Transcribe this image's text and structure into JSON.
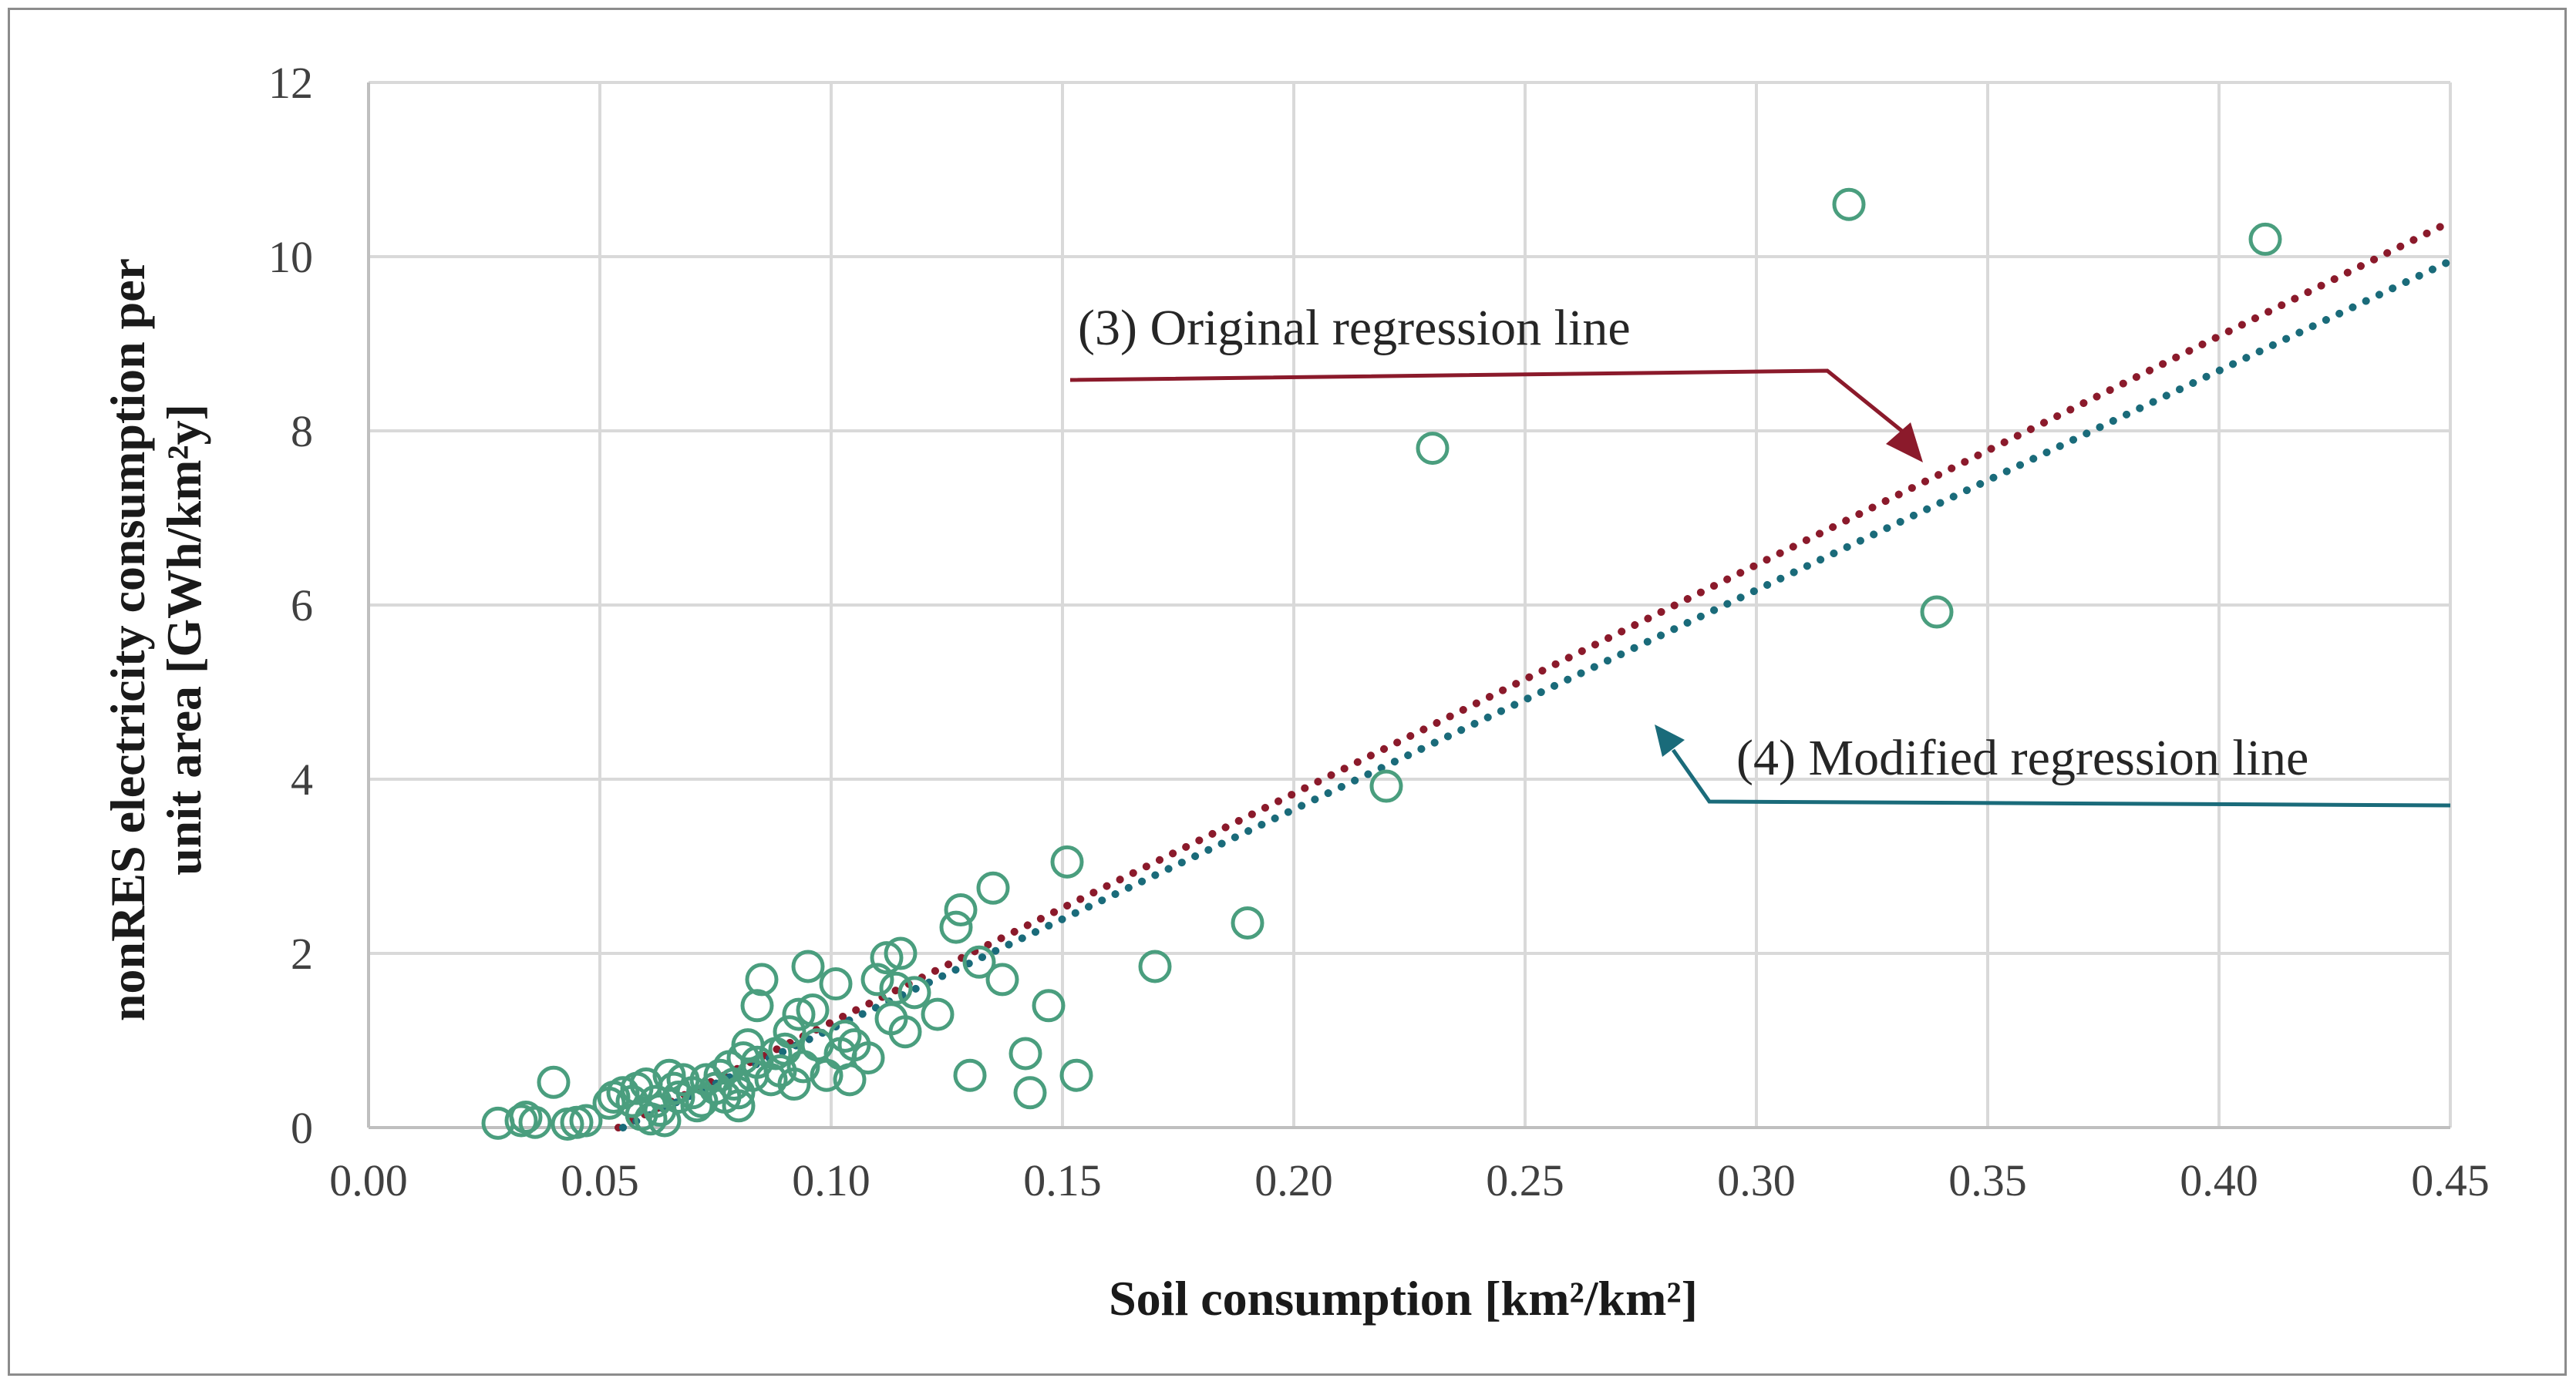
{
  "chart_data": {
    "type": "scatter",
    "title": "",
    "xlabel": "Soil consumption [km²/km²]",
    "ylabel_lines": [
      "nonRES electricity consumption per",
      "unit area [GWh/km²y]"
    ],
    "xlim": [
      0,
      0.45
    ],
    "ylim": [
      0,
      12
    ],
    "x_ticks": [
      "0.00",
      "0.05",
      "0.10",
      "0.15",
      "0.20",
      "0.25",
      "0.30",
      "0.35",
      "0.40",
      "0.45"
    ],
    "y_ticks": [
      "0",
      "2",
      "4",
      "6",
      "8",
      "10",
      "12"
    ],
    "grid": true,
    "series": [
      {
        "name": "observations",
        "color": "#4a9e7e",
        "marker": "open-circle",
        "points": [
          [
            0.028,
            0.05
          ],
          [
            0.033,
            0.08
          ],
          [
            0.034,
            0.12
          ],
          [
            0.036,
            0.06
          ],
          [
            0.04,
            0.52
          ],
          [
            0.043,
            0.04
          ],
          [
            0.045,
            0.06
          ],
          [
            0.047,
            0.08
          ],
          [
            0.052,
            0.28
          ],
          [
            0.053,
            0.35
          ],
          [
            0.055,
            0.4
          ],
          [
            0.057,
            0.3
          ],
          [
            0.058,
            0.45
          ],
          [
            0.059,
            0.15
          ],
          [
            0.06,
            0.5
          ],
          [
            0.061,
            0.1
          ],
          [
            0.062,
            0.3
          ],
          [
            0.063,
            0.2
          ],
          [
            0.064,
            0.08
          ],
          [
            0.065,
            0.6
          ],
          [
            0.066,
            0.45
          ],
          [
            0.067,
            0.35
          ],
          [
            0.068,
            0.55
          ],
          [
            0.07,
            0.4
          ],
          [
            0.071,
            0.25
          ],
          [
            0.072,
            0.3
          ],
          [
            0.073,
            0.55
          ],
          [
            0.075,
            0.45
          ],
          [
            0.076,
            0.6
          ],
          [
            0.077,
            0.35
          ],
          [
            0.078,
            0.7
          ],
          [
            0.079,
            0.5
          ],
          [
            0.08,
            0.25
          ],
          [
            0.08,
            0.4
          ],
          [
            0.081,
            0.8
          ],
          [
            0.082,
            0.95
          ],
          [
            0.083,
            0.6
          ],
          [
            0.084,
            0.75
          ],
          [
            0.084,
            1.4
          ],
          [
            0.085,
            1.7
          ],
          [
            0.087,
            0.55
          ],
          [
            0.088,
            0.85
          ],
          [
            0.089,
            0.65
          ],
          [
            0.09,
            0.9
          ],
          [
            0.091,
            1.1
          ],
          [
            0.092,
            0.5
          ],
          [
            0.093,
            1.3
          ],
          [
            0.094,
            0.7
          ],
          [
            0.095,
            1.85
          ],
          [
            0.096,
            1.35
          ],
          [
            0.097,
            0.95
          ],
          [
            0.099,
            0.6
          ],
          [
            0.101,
            1.65
          ],
          [
            0.102,
            0.85
          ],
          [
            0.103,
            1.05
          ],
          [
            0.104,
            0.55
          ],
          [
            0.105,
            0.95
          ],
          [
            0.108,
            0.8
          ],
          [
            0.11,
            1.7
          ],
          [
            0.112,
            1.95
          ],
          [
            0.113,
            1.25
          ],
          [
            0.114,
            1.6
          ],
          [
            0.115,
            2.0
          ],
          [
            0.116,
            1.1
          ],
          [
            0.118,
            1.55
          ],
          [
            0.123,
            1.3
          ],
          [
            0.127,
            2.3
          ],
          [
            0.128,
            2.5
          ],
          [
            0.13,
            0.6
          ],
          [
            0.132,
            1.9
          ],
          [
            0.135,
            2.75
          ],
          [
            0.137,
            1.7
          ],
          [
            0.142,
            0.85
          ],
          [
            0.143,
            0.4
          ],
          [
            0.147,
            1.4
          ],
          [
            0.151,
            3.05
          ],
          [
            0.153,
            0.6
          ],
          [
            0.17,
            1.85
          ],
          [
            0.19,
            2.35
          ],
          [
            0.22,
            3.92
          ],
          [
            0.23,
            7.8
          ],
          [
            0.32,
            10.6
          ],
          [
            0.339,
            5.92
          ],
          [
            0.41,
            10.2
          ]
        ]
      }
    ],
    "regression_lines": [
      {
        "name": "(3) Original regression line",
        "color": "#8b1a2b",
        "x_start": 0.054,
        "y_start": 0.0,
        "x_end": 0.45,
        "y_end": 10.4
      },
      {
        "name": "(4) Modified regression line",
        "color": "#1a6b7a",
        "x_start": 0.055,
        "y_start": 0.0,
        "x_end": 0.45,
        "y_end": 9.95
      }
    ],
    "annotations": [
      {
        "text": "(3) Original regression line",
        "color": "#8b1a2b"
      },
      {
        "text": "(4) Modified regression line",
        "color": "#1a6b7a"
      }
    ]
  }
}
